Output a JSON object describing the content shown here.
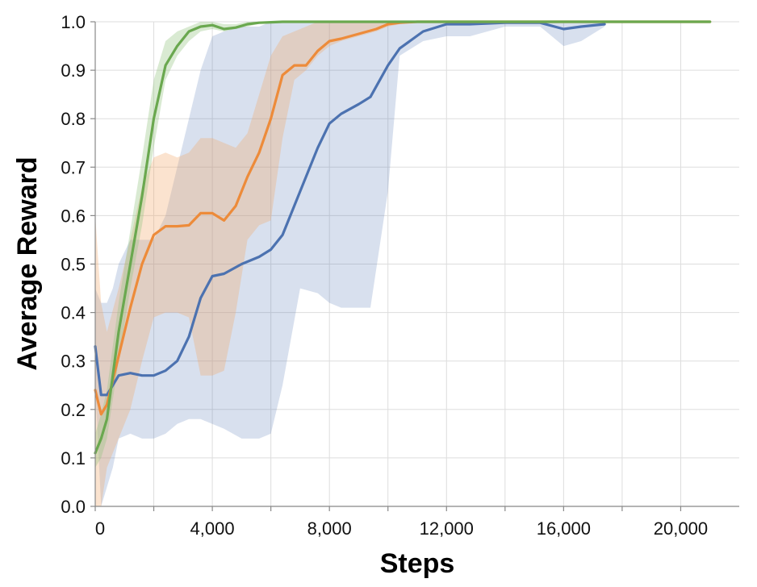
{
  "chart_data": {
    "type": "line",
    "xlabel": "Steps",
    "ylabel": "Average Reward",
    "xlim": [
      0,
      22000
    ],
    "ylim": [
      0,
      1
    ],
    "x_ticks": [
      0,
      2000,
      4000,
      6000,
      8000,
      10000,
      12000,
      14000,
      16000,
      18000,
      20000
    ],
    "x_tick_labels": [
      "0",
      "4,000",
      "8,000",
      "12,000",
      "16,000",
      "20,000"
    ],
    "x_tick_label_values": [
      0,
      4000,
      8000,
      12000,
      16000,
      20000
    ],
    "y_ticks": [
      0,
      0.1,
      0.2,
      0.3,
      0.4,
      0.5,
      0.6,
      0.7,
      0.8,
      0.9,
      1.0
    ],
    "y_tick_labels": [
      "0.0",
      "0.1",
      "0.2",
      "0.3",
      "0.4",
      "0.5",
      "0.6",
      "0.7",
      "0.8",
      "0.9",
      "1.0"
    ],
    "grid": true,
    "legend": "none",
    "series": [
      {
        "color": "#4c72b0",
        "band_color": "#4c72b0",
        "band_opacity": 0.22,
        "x": [
          0,
          200,
          400,
          600,
          800,
          1200,
          1600,
          2000,
          2400,
          2800,
          3200,
          3600,
          4000,
          4400,
          5000,
          5600,
          6000,
          6400,
          7000,
          7600,
          8000,
          8400,
          9000,
          9400,
          10000,
          10400,
          11200,
          12000,
          12800,
          14000,
          15200,
          16000,
          16600,
          17400
        ],
        "values": [
          0.33,
          0.23,
          0.23,
          0.25,
          0.27,
          0.275,
          0.27,
          0.27,
          0.28,
          0.3,
          0.35,
          0.43,
          0.475,
          0.48,
          0.5,
          0.515,
          0.53,
          0.56,
          0.65,
          0.74,
          0.79,
          0.81,
          0.83,
          0.845,
          0.91,
          0.945,
          0.98,
          0.995,
          0.995,
          0.998,
          0.998,
          0.985,
          0.99,
          0.995
        ],
        "lower": [
          0.25,
          0.0,
          0.04,
          0.08,
          0.14,
          0.15,
          0.14,
          0.14,
          0.15,
          0.17,
          0.18,
          0.18,
          0.17,
          0.16,
          0.14,
          0.14,
          0.15,
          0.25,
          0.45,
          0.44,
          0.42,
          0.41,
          0.41,
          0.41,
          0.65,
          0.93,
          0.96,
          0.97,
          0.97,
          0.99,
          0.99,
          0.95,
          0.96,
          0.99
        ],
        "upper": [
          0.45,
          0.42,
          0.42,
          0.45,
          0.5,
          0.55,
          0.55,
          0.55,
          0.6,
          0.7,
          0.8,
          0.9,
          0.97,
          0.98,
          0.99,
          0.99,
          1.0,
          1.0,
          1.0,
          1.0,
          1.0,
          1.0,
          1.0,
          1.0,
          1.0,
          1.0,
          1.0,
          1.0,
          1.0,
          1.0,
          1.0,
          1.0,
          1.0,
          1.0
        ]
      },
      {
        "color": "#ed8b3a",
        "band_color": "#f4a96a",
        "band_opacity": 0.32,
        "x": [
          0,
          200,
          400,
          800,
          1200,
          1600,
          2000,
          2400,
          2800,
          3200,
          3600,
          4000,
          4400,
          4800,
          5200,
          5600,
          6000,
          6400,
          6800,
          7200,
          7600,
          8000,
          8400,
          9000,
          9600,
          10000,
          10400,
          11000,
          12000,
          14000,
          16000,
          18000,
          21000
        ],
        "values": [
          0.24,
          0.19,
          0.21,
          0.31,
          0.41,
          0.5,
          0.56,
          0.578,
          0.578,
          0.58,
          0.605,
          0.605,
          0.59,
          0.62,
          0.68,
          0.73,
          0.8,
          0.89,
          0.91,
          0.91,
          0.94,
          0.96,
          0.965,
          0.975,
          0.985,
          0.995,
          0.998,
          1.0,
          1.0,
          1.0,
          1.0,
          1.0,
          1.0
        ],
        "lower": [
          0.0,
          0.0,
          0.08,
          0.14,
          0.2,
          0.3,
          0.39,
          0.4,
          0.4,
          0.39,
          0.27,
          0.27,
          0.28,
          0.4,
          0.55,
          0.58,
          0.59,
          0.76,
          0.88,
          0.9,
          0.93,
          0.95,
          0.96,
          0.97,
          0.98,
          0.99,
          0.995,
          1.0,
          1.0,
          1.0,
          1.0,
          1.0,
          1.0
        ],
        "upper": [
          0.6,
          0.42,
          0.36,
          0.45,
          0.55,
          0.66,
          0.72,
          0.73,
          0.72,
          0.73,
          0.76,
          0.76,
          0.75,
          0.74,
          0.77,
          0.85,
          0.93,
          0.97,
          0.98,
          0.99,
          1.0,
          1.0,
          1.0,
          1.0,
          1.0,
          1.0,
          1.0,
          1.0,
          1.0,
          1.0,
          1.0,
          1.0,
          1.0
        ]
      },
      {
        "color": "#6aa84f",
        "band_color": "#93c47d",
        "band_opacity": 0.35,
        "x": [
          0,
          200,
          400,
          800,
          1200,
          1600,
          2000,
          2400,
          2800,
          3200,
          3600,
          4000,
          4400,
          4800,
          5200,
          5600,
          6000,
          6400,
          7000,
          8000,
          10000,
          12000,
          14000,
          16000,
          18000,
          21000
        ],
        "values": [
          0.11,
          0.14,
          0.18,
          0.36,
          0.5,
          0.64,
          0.8,
          0.91,
          0.95,
          0.98,
          0.99,
          0.993,
          0.985,
          0.988,
          0.995,
          0.998,
          0.999,
          1.0,
          1.0,
          1.0,
          1.0,
          1.0,
          1.0,
          1.0,
          1.0,
          1.0
        ],
        "lower": [
          0.08,
          0.1,
          0.14,
          0.3,
          0.45,
          0.58,
          0.74,
          0.88,
          0.93,
          0.96,
          0.98,
          0.985,
          0.98,
          0.985,
          0.99,
          0.996,
          0.998,
          1.0,
          1.0,
          1.0,
          1.0,
          1.0,
          1.0,
          1.0,
          1.0,
          1.0
        ],
        "upper": [
          0.15,
          0.19,
          0.24,
          0.42,
          0.57,
          0.72,
          0.88,
          0.96,
          0.98,
          0.99,
          1.0,
          1.0,
          0.995,
          0.995,
          1.0,
          1.0,
          1.0,
          1.0,
          1.0,
          1.0,
          1.0,
          1.0,
          1.0,
          1.0,
          1.0,
          1.0
        ]
      }
    ]
  }
}
